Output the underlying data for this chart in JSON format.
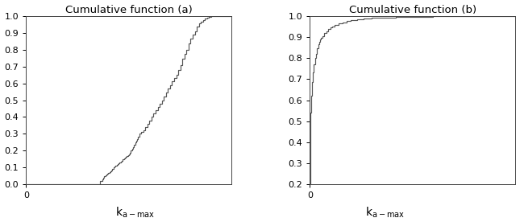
{
  "title_a": "Cumulative function (a)",
  "title_b": "Cumulative function (b)",
  "xlabel_text": "k",
  "xlabel_sub": "a-max",
  "ylim_a": [
    0,
    1
  ],
  "ylim_b": [
    0.2,
    1
  ],
  "xlim_a": [
    0,
    1
  ],
  "xlim_b": [
    0,
    1
  ],
  "yticks_a": [
    0,
    0.1,
    0.2,
    0.3,
    0.4,
    0.5,
    0.6,
    0.7,
    0.8,
    0.9,
    1
  ],
  "yticks_b": [
    0.2,
    0.3,
    0.4,
    0.5,
    0.6,
    0.7,
    0.8,
    0.9,
    1
  ],
  "line_color": "#555555",
  "bg_color": "#ffffff",
  "x_a": [
    0.0,
    0.35,
    0.36,
    0.37,
    0.375,
    0.38,
    0.385,
    0.39,
    0.395,
    0.4,
    0.405,
    0.41,
    0.415,
    0.42,
    0.425,
    0.43,
    0.435,
    0.44,
    0.445,
    0.45,
    0.455,
    0.46,
    0.465,
    0.47,
    0.475,
    0.48,
    0.485,
    0.49,
    0.495,
    0.5,
    0.505,
    0.51,
    0.515,
    0.52,
    0.525,
    0.53,
    0.535,
    0.54,
    0.545,
    0.55,
    0.56,
    0.57,
    0.58,
    0.59,
    0.6,
    0.61,
    0.62,
    0.63,
    0.64,
    0.65,
    0.66,
    0.67,
    0.68,
    0.69,
    0.7,
    0.71,
    0.72,
    0.73,
    0.74,
    0.75,
    0.76,
    0.77,
    0.78,
    0.79,
    0.8,
    0.81,
    0.82,
    0.83,
    0.84,
    0.85,
    0.86,
    0.87,
    0.88,
    0.89,
    0.9,
    0.92,
    0.94,
    1.0
  ],
  "y_a": [
    0.0,
    0.0,
    0.02,
    0.03,
    0.04,
    0.05,
    0.055,
    0.06,
    0.065,
    0.07,
    0.075,
    0.08,
    0.085,
    0.09,
    0.1,
    0.105,
    0.11,
    0.115,
    0.12,
    0.125,
    0.13,
    0.135,
    0.14,
    0.15,
    0.155,
    0.16,
    0.165,
    0.17,
    0.175,
    0.18,
    0.19,
    0.2,
    0.21,
    0.22,
    0.235,
    0.25,
    0.26,
    0.27,
    0.285,
    0.3,
    0.31,
    0.32,
    0.34,
    0.36,
    0.38,
    0.4,
    0.42,
    0.44,
    0.46,
    0.48,
    0.5,
    0.52,
    0.545,
    0.57,
    0.59,
    0.61,
    0.63,
    0.65,
    0.68,
    0.71,
    0.745,
    0.775,
    0.8,
    0.835,
    0.865,
    0.89,
    0.91,
    0.935,
    0.955,
    0.965,
    0.975,
    0.983,
    0.99,
    0.995,
    1.0,
    1.0,
    1.0,
    1.0
  ],
  "x_b": [
    0.0,
    0.002,
    0.004,
    0.006,
    0.008,
    0.01,
    0.012,
    0.014,
    0.016,
    0.018,
    0.02,
    0.025,
    0.03,
    0.035,
    0.04,
    0.045,
    0.05,
    0.055,
    0.06,
    0.07,
    0.08,
    0.09,
    0.1,
    0.11,
    0.12,
    0.14,
    0.16,
    0.18,
    0.2,
    0.23,
    0.26,
    0.3,
    0.35,
    0.42,
    0.5,
    0.6,
    0.7,
    0.8,
    1.0
  ],
  "y_b": [
    0.2,
    0.48,
    0.54,
    0.58,
    0.62,
    0.655,
    0.685,
    0.71,
    0.73,
    0.75,
    0.77,
    0.8,
    0.82,
    0.845,
    0.865,
    0.878,
    0.888,
    0.897,
    0.905,
    0.918,
    0.928,
    0.938,
    0.945,
    0.951,
    0.957,
    0.965,
    0.97,
    0.975,
    0.98,
    0.984,
    0.988,
    0.991,
    0.993,
    0.995,
    0.997,
    0.998,
    0.999,
    1.0,
    1.0
  ],
  "figsize": [
    6.45,
    2.76
  ],
  "dpi": 100,
  "title_fontsize": 9.5,
  "tick_labelsize": 8,
  "line_width": 0.85,
  "wspace": 0.38,
  "xlabel_fontsize": 10
}
